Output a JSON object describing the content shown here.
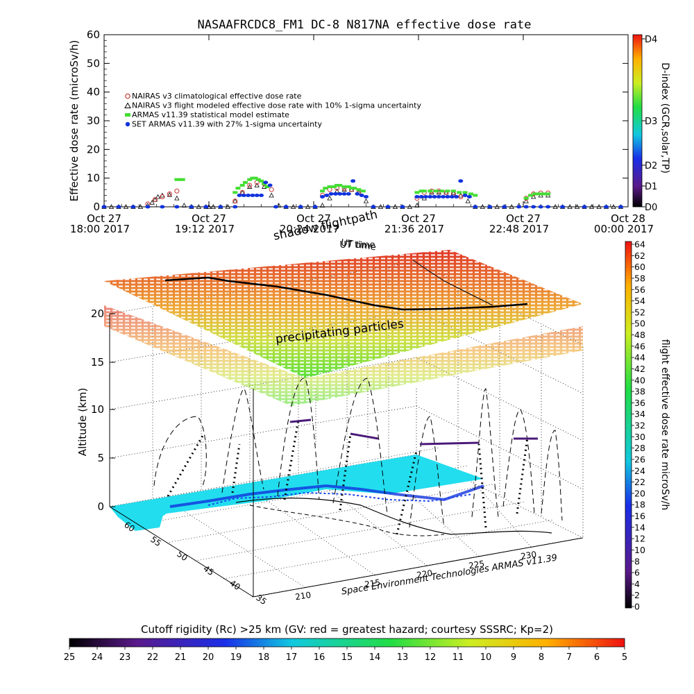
{
  "title": "NASAAFRCDC8_FM1 DC-8    N817NA effective dose rate",
  "chart_data": [
    {
      "type": "scatter",
      "title": "NASAAFRCDC8_FM1 DC-8    N817NA effective dose rate",
      "xlabel": "UT time",
      "ylabel": "Effective dose rate (microSv/h)",
      "ylim": [
        0,
        60
      ],
      "yticks": [
        "0",
        "10",
        "20",
        "30",
        "40",
        "50",
        "60"
      ],
      "xticks": [
        {
          "l1": "Oct 27",
          "l2": "18:00 2017"
        },
        {
          "l1": "Oct 27",
          "l2": "19:12 2017"
        },
        {
          "l1": "Oct 27",
          "l2": "20:24 2017"
        },
        {
          "l1": "Oct 27",
          "l2": "21:36 2017"
        },
        {
          "l1": "Oct 27",
          "l2": "22:48 2017"
        },
        {
          "l1": "Oct 28",
          "l2": "00:00 2017"
        }
      ],
      "legend_position": "top-left",
      "legend": [
        {
          "label": "NAIRAS v3 climatological effective dose rate",
          "color": "#cc3333",
          "marker": "circle-open"
        },
        {
          "label": "NAIRAS v3 flight modeled effective dose rate with 10% 1-sigma uncertainty",
          "color": "#000000",
          "marker": "triangle-open"
        },
        {
          "label": "ARMAS v11.39 statistical model estimate",
          "color": "#44dd33",
          "marker": "asterisk"
        },
        {
          "label": "SET ARMAS v11.39 with 27% 1-sigma uncertainty",
          "color": "#1133dd",
          "marker": "dot"
        }
      ],
      "series": [
        {
          "name": "NAIRAS v3 flight modeled effective dose rate with 10% 1-sigma uncertainty",
          "x": [
            0,
            5,
            10,
            15,
            20,
            25,
            30,
            33,
            35,
            37,
            40,
            45,
            50,
            55,
            60,
            65,
            70,
            72,
            75,
            80,
            85,
            90,
            95,
            100,
            105,
            110,
            115,
            120,
            125,
            130,
            135,
            140,
            145,
            150,
            155,
            160,
            165,
            170,
            175,
            180,
            185,
            190,
            195,
            200,
            205,
            210,
            215,
            220,
            225,
            230,
            235,
            240,
            245,
            250,
            255,
            260,
            265,
            270,
            275,
            280,
            285,
            290,
            295,
            300,
            305,
            310,
            315,
            320,
            325,
            330,
            335,
            340,
            345,
            350,
            355
          ],
          "y": [
            0,
            0,
            0,
            0,
            0,
            0,
            0.5,
            1.5,
            2.5,
            3.5,
            4,
            4.2,
            3,
            0.5,
            0,
            0,
            0,
            0,
            0,
            0,
            0,
            2,
            5,
            7,
            7.5,
            7,
            4,
            0.5,
            0,
            0,
            0,
            0,
            0,
            0.5,
            3,
            5.5,
            6,
            6,
            5,
            2,
            0,
            0,
            0,
            0,
            0,
            0,
            0.5,
            3,
            5,
            5,
            5,
            4.8,
            4,
            2,
            0,
            0,
            0,
            0,
            0,
            0,
            0.5,
            2,
            3.5,
            4,
            4,
            0,
            0,
            0,
            0,
            0,
            0,
            0,
            0,
            0,
            0
          ]
        },
        {
          "name": "NAIRAS v3 climatological effective dose rate",
          "x": [
            30,
            35,
            40,
            45,
            50,
            90,
            95,
            100,
            105,
            110,
            115,
            150,
            155,
            160,
            165,
            170,
            175,
            215,
            220,
            225,
            230,
            235,
            240,
            245,
            290,
            295,
            300,
            305
          ],
          "y": [
            1,
            2.5,
            3.5,
            4.5,
            5.5,
            2,
            5,
            7.5,
            8.5,
            8,
            6,
            4,
            6,
            6.5,
            6.5,
            6,
            5,
            3,
            5,
            5.5,
            5.5,
            5,
            4.5,
            3.5,
            3,
            4.5,
            4.8,
            4.8
          ]
        },
        {
          "name": "ARMAS v11.39 statistical model estimate",
          "x": [
            50,
            52,
            54,
            90,
            92,
            95,
            97,
            100,
            102,
            104,
            106,
            108,
            110,
            112,
            150,
            152,
            155,
            158,
            160,
            162,
            165,
            168,
            170,
            172,
            175,
            178,
            215,
            218,
            220,
            224,
            228,
            232,
            236,
            240,
            244,
            248,
            252,
            255,
            290,
            293,
            296,
            299,
            302,
            305
          ],
          "y": [
            9.5,
            9.5,
            9.5,
            5,
            6.5,
            7.5,
            8.5,
            9.5,
            10,
            10,
            9.5,
            9,
            8,
            7,
            5.5,
            6.5,
            7,
            7,
            7.5,
            7.5,
            7,
            7,
            6.5,
            6.5,
            6,
            5.5,
            5,
            5.5,
            5.5,
            5.5,
            5.5,
            5.5,
            5.5,
            5.5,
            5,
            5,
            4.5,
            4,
            3,
            4,
            4.5,
            4.5,
            4.5,
            4.5
          ]
        },
        {
          "name": "SET ARMAS v11.39 with 27% 1-sigma uncertainty",
          "x": [
            0,
            10,
            20,
            30,
            40,
            50,
            60,
            70,
            80,
            90,
            93,
            96,
            99,
            102,
            105,
            108,
            111,
            114,
            118,
            125,
            135,
            145,
            150,
            153,
            156,
            159,
            162,
            165,
            168,
            171,
            174,
            177,
            180,
            185,
            195,
            205,
            215,
            218,
            221,
            224,
            227,
            230,
            233,
            236,
            239,
            242,
            245,
            248,
            251,
            255,
            265,
            275,
            285,
            290,
            295,
            300,
            305,
            315,
            330,
            345,
            355
          ],
          "y": [
            0,
            0,
            0,
            0,
            0,
            0,
            0,
            0,
            0,
            0,
            4,
            4,
            4,
            4,
            4,
            4,
            8.5,
            7.5,
            0,
            0,
            0,
            0,
            3.5,
            4,
            4.5,
            4.5,
            4.5,
            4.5,
            4.5,
            9,
            4.5,
            4,
            3.5,
            0,
            0,
            0,
            3.5,
            3.5,
            3.5,
            3.5,
            3.5,
            3.5,
            3.5,
            3.5,
            3.5,
            3.5,
            9,
            4,
            3.5,
            0,
            0,
            0,
            0,
            0,
            0,
            0,
            0,
            0,
            0,
            0,
            0
          ]
        }
      ],
      "colorbar": {
        "label": "D-index (GCR,solar,TP)",
        "ticks": [
          "D0",
          "D1",
          "D2",
          "D3",
          "D4"
        ]
      }
    },
    {
      "type": "scatter",
      "xlabel": "Space Environment Technologies ARMAS v11.39",
      "ylabel": "Altitude (km)",
      "zticks": [
        "0",
        "5",
        "10",
        "15",
        "20"
      ],
      "lon_ticks": [
        "210",
        "215",
        "220",
        "225",
        "230"
      ],
      "lat_ticks": [
        "60",
        "55",
        "50",
        "45",
        "40",
        "35"
      ],
      "annotations": [
        "shadow flightpath",
        "precipitating particles",
        "UT time"
      ],
      "colorbar": {
        "label": "flight effective dose rate microSv/h",
        "ticks": [
          "0",
          "2",
          "4",
          "6",
          "8",
          "10",
          "12",
          "14",
          "16",
          "18",
          "20",
          "22",
          "24",
          "26",
          "28",
          "30",
          "32",
          "34",
          "36",
          "38",
          "40",
          "42",
          "44",
          "46",
          "48",
          "50",
          "52",
          "54",
          "56",
          "58",
          "60",
          "62",
          "64"
        ]
      },
      "bottom_colorbar": {
        "label": "Cutoff rigidity (Rc) >25 km (GV: red = greatest hazard; courtesy SSSRC; Kp=2)",
        "ticks": [
          "25",
          "24",
          "23",
          "22",
          "21",
          "20",
          "19",
          "18",
          "17",
          "16",
          "15",
          "14",
          "13",
          "12",
          "11",
          "10",
          "9",
          "8",
          "7",
          "6",
          "5"
        ]
      }
    }
  ],
  "colors": {
    "series_black": "#000000",
    "series_red": "#cc3333",
    "series_green": "#44dd33",
    "series_blue": "#1133dd",
    "map_cyan": "#22ddee"
  }
}
